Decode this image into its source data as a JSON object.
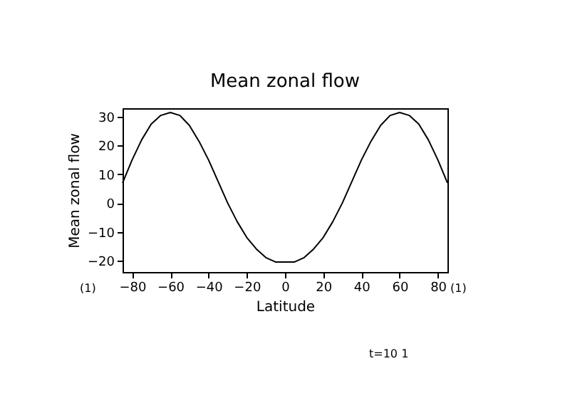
{
  "chart_data": {
    "type": "line",
    "title": "Mean zonal flow",
    "xlabel": "Latitude",
    "ylabel": "Mean zonal flow",
    "x": [
      -85,
      -80,
      -75,
      -70,
      -65,
      -60,
      -55,
      -50,
      -45,
      -40,
      -35,
      -30,
      -25,
      -20,
      -15,
      -10,
      -5,
      0,
      5,
      10,
      15,
      20,
      25,
      30,
      35,
      40,
      45,
      50,
      55,
      60,
      65,
      70,
      75,
      80,
      85
    ],
    "series": [
      {
        "color": "#000000",
        "values": [
          7,
          15,
          22,
          27.5,
          30.5,
          31.5,
          30.5,
          27,
          21.5,
          15,
          7.5,
          0,
          -6.5,
          -12,
          -16,
          -19,
          -20.5,
          -20.5,
          -20.5,
          -19,
          -16,
          -12,
          -6.5,
          0,
          7.5,
          15,
          21.5,
          27,
          30.5,
          31.5,
          30.5,
          27.5,
          22,
          15,
          7
        ]
      }
    ],
    "xlim": [
      -85,
      85
    ],
    "xticks": [
      -80,
      -60,
      -40,
      -20,
      0,
      20,
      40,
      60,
      80
    ],
    "ylim": [
      -24,
      33
    ],
    "yticks": [
      -20,
      -10,
      0,
      10,
      20,
      30
    ],
    "grid": false,
    "marker": "none",
    "line_style": "solid",
    "annotations": [
      "(1)",
      "(1)",
      "t=10 1"
    ]
  }
}
